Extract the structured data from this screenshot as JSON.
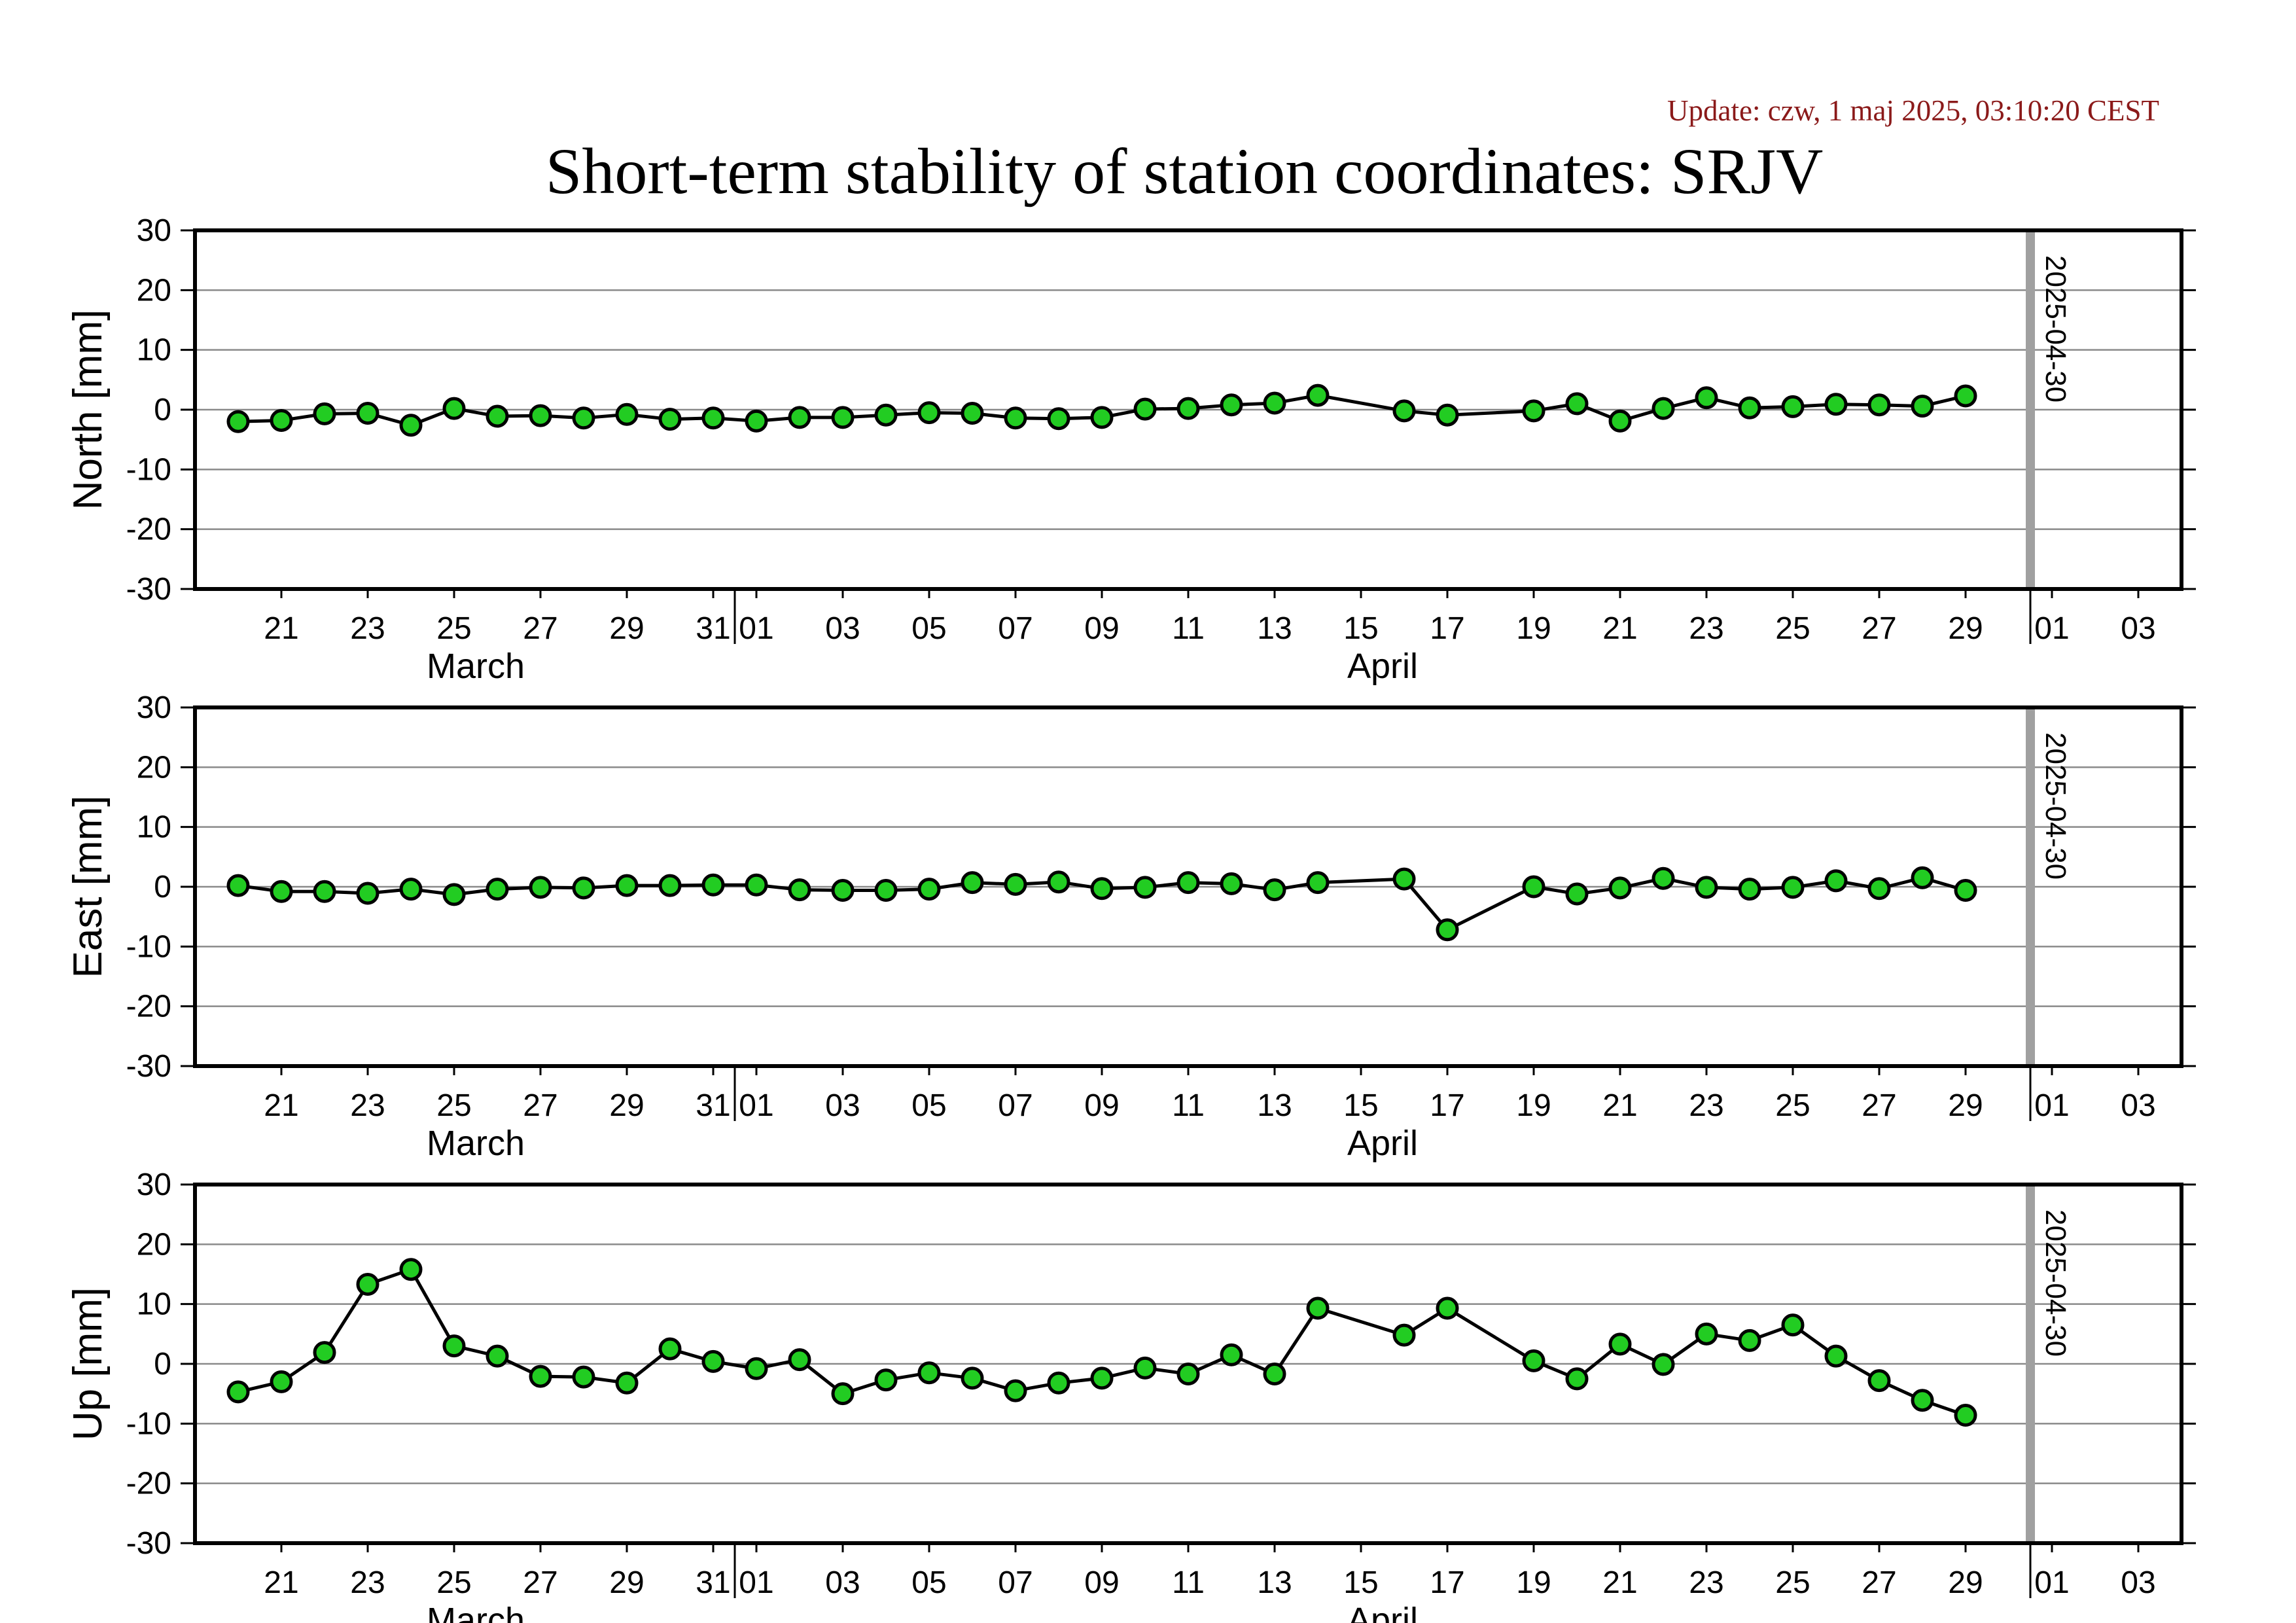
{
  "update_text": "Update: czw, 1 maj 2025, 03:10:20 CEST",
  "chart_data": {
    "type": "line",
    "title": "Short-term stability of station coordinates: SRJV",
    "x_range": [
      "2025-03-19",
      "2025-05-04"
    ],
    "x_tick_labels": [
      "21",
      "23",
      "25",
      "27",
      "29",
      "31",
      "01",
      "03",
      "05",
      "07",
      "09",
      "11",
      "13",
      "15",
      "17",
      "19",
      "21",
      "23",
      "25",
      "27",
      "29",
      "01",
      "03"
    ],
    "month_labels": [
      "March",
      "April"
    ],
    "grid": true,
    "marker": {
      "date": "2025-04-30",
      "label": "2025-04-30",
      "color": "#a0a0a0"
    },
    "line_color": "#000000",
    "point_fill": "#22cc22",
    "panels": [
      {
        "ylabel": "North [mm]",
        "ylim": [
          -30,
          30
        ],
        "yticks": [
          30,
          20,
          10,
          0,
          -10,
          -20,
          -30
        ],
        "points": [
          [
            "2025-03-20",
            -2.0
          ],
          [
            "2025-03-21",
            -1.8
          ],
          [
            "2025-03-22",
            -0.7
          ],
          [
            "2025-03-23",
            -0.6
          ],
          [
            "2025-03-24",
            -2.6
          ],
          [
            "2025-03-25",
            0.2
          ],
          [
            "2025-03-26",
            -1.1
          ],
          [
            "2025-03-27",
            -1.0
          ],
          [
            "2025-03-28",
            -1.4
          ],
          [
            "2025-03-29",
            -0.8
          ],
          [
            "2025-03-30",
            -1.6
          ],
          [
            "2025-03-31",
            -1.4
          ],
          [
            "2025-04-01",
            -1.9
          ],
          [
            "2025-04-02",
            -1.3
          ],
          [
            "2025-04-03",
            -1.3
          ],
          [
            "2025-04-04",
            -0.9
          ],
          [
            "2025-04-05",
            -0.5
          ],
          [
            "2025-04-06",
            -0.6
          ],
          [
            "2025-04-07",
            -1.4
          ],
          [
            "2025-04-08",
            -1.5
          ],
          [
            "2025-04-09",
            -1.3
          ],
          [
            "2025-04-10",
            0.1
          ],
          [
            "2025-04-11",
            0.2
          ],
          [
            "2025-04-12",
            0.8
          ],
          [
            "2025-04-13",
            1.1
          ],
          [
            "2025-04-14",
            2.4
          ],
          [
            "2025-04-16",
            -0.2
          ],
          [
            "2025-04-17",
            -0.9
          ],
          [
            "2025-04-19",
            -0.2
          ],
          [
            "2025-04-20",
            1.0
          ],
          [
            "2025-04-21",
            -1.9
          ],
          [
            "2025-04-22",
            0.2
          ],
          [
            "2025-04-23",
            2.0
          ],
          [
            "2025-04-24",
            0.3
          ],
          [
            "2025-04-25",
            0.5
          ],
          [
            "2025-04-26",
            0.9
          ],
          [
            "2025-04-27",
            0.8
          ],
          [
            "2025-04-28",
            0.6
          ],
          [
            "2025-04-29",
            2.3
          ]
        ]
      },
      {
        "ylabel": "East [mm]",
        "ylim": [
          -30,
          30
        ],
        "yticks": [
          30,
          20,
          10,
          0,
          -10,
          -20,
          -30
        ],
        "points": [
          [
            "2025-03-20",
            0.2
          ],
          [
            "2025-03-21",
            -0.8
          ],
          [
            "2025-03-22",
            -0.8
          ],
          [
            "2025-03-23",
            -1.1
          ],
          [
            "2025-03-24",
            -0.4
          ],
          [
            "2025-03-25",
            -1.3
          ],
          [
            "2025-03-26",
            -0.4
          ],
          [
            "2025-03-27",
            -0.1
          ],
          [
            "2025-03-28",
            -0.2
          ],
          [
            "2025-03-29",
            0.2
          ],
          [
            "2025-03-30",
            0.2
          ],
          [
            "2025-03-31",
            0.3
          ],
          [
            "2025-04-01",
            0.3
          ],
          [
            "2025-04-02",
            -0.5
          ],
          [
            "2025-04-03",
            -0.6
          ],
          [
            "2025-04-04",
            -0.6
          ],
          [
            "2025-04-05",
            -0.4
          ],
          [
            "2025-04-06",
            0.7
          ],
          [
            "2025-04-07",
            0.4
          ],
          [
            "2025-04-08",
            0.8
          ],
          [
            "2025-04-09",
            -0.3
          ],
          [
            "2025-04-10",
            -0.1
          ],
          [
            "2025-04-11",
            0.7
          ],
          [
            "2025-04-12",
            0.5
          ],
          [
            "2025-04-13",
            -0.5
          ],
          [
            "2025-04-14",
            0.7
          ],
          [
            "2025-04-16",
            1.3
          ],
          [
            "2025-04-17",
            -7.2
          ],
          [
            "2025-04-19",
            0.0
          ],
          [
            "2025-04-20",
            -1.2
          ],
          [
            "2025-04-21",
            -0.2
          ],
          [
            "2025-04-22",
            1.4
          ],
          [
            "2025-04-23",
            -0.1
          ],
          [
            "2025-04-24",
            -0.4
          ],
          [
            "2025-04-25",
            -0.1
          ],
          [
            "2025-04-26",
            1.0
          ],
          [
            "2025-04-27",
            -0.3
          ],
          [
            "2025-04-28",
            1.5
          ],
          [
            "2025-04-29",
            -0.6
          ]
        ]
      },
      {
        "ylabel": "Up [mm]",
        "ylim": [
          -30,
          30
        ],
        "yticks": [
          30,
          20,
          10,
          0,
          -10,
          -20,
          -30
        ],
        "points": [
          [
            "2025-03-20",
            -4.7
          ],
          [
            "2025-03-21",
            -3.0
          ],
          [
            "2025-03-22",
            1.9
          ],
          [
            "2025-03-23",
            13.3
          ],
          [
            "2025-03-24",
            15.8
          ],
          [
            "2025-03-25",
            3.0
          ],
          [
            "2025-03-26",
            1.3
          ],
          [
            "2025-03-27",
            -2.1
          ],
          [
            "2025-03-28",
            -2.2
          ],
          [
            "2025-03-29",
            -3.2
          ],
          [
            "2025-03-30",
            2.5
          ],
          [
            "2025-03-31",
            0.4
          ],
          [
            "2025-04-01",
            -0.8
          ],
          [
            "2025-04-02",
            0.7
          ],
          [
            "2025-04-03",
            -5.0
          ],
          [
            "2025-04-04",
            -2.7
          ],
          [
            "2025-04-05",
            -1.5
          ],
          [
            "2025-04-06",
            -2.4
          ],
          [
            "2025-04-07",
            -4.5
          ],
          [
            "2025-04-08",
            -3.2
          ],
          [
            "2025-04-09",
            -2.4
          ],
          [
            "2025-04-10",
            -0.7
          ],
          [
            "2025-04-11",
            -1.7
          ],
          [
            "2025-04-12",
            1.5
          ],
          [
            "2025-04-13",
            -1.7
          ],
          [
            "2025-04-14",
            9.3
          ],
          [
            "2025-04-16",
            4.8
          ],
          [
            "2025-04-17",
            9.3
          ],
          [
            "2025-04-19",
            0.5
          ],
          [
            "2025-04-20",
            -2.5
          ],
          [
            "2025-04-21",
            3.3
          ],
          [
            "2025-04-22",
            -0.1
          ],
          [
            "2025-04-23",
            5.0
          ],
          [
            "2025-04-24",
            3.9
          ],
          [
            "2025-04-25",
            6.5
          ],
          [
            "2025-04-26",
            1.3
          ],
          [
            "2025-04-27",
            -2.8
          ],
          [
            "2025-04-28",
            -6.1
          ],
          [
            "2025-04-29",
            -8.6
          ]
        ]
      }
    ]
  }
}
